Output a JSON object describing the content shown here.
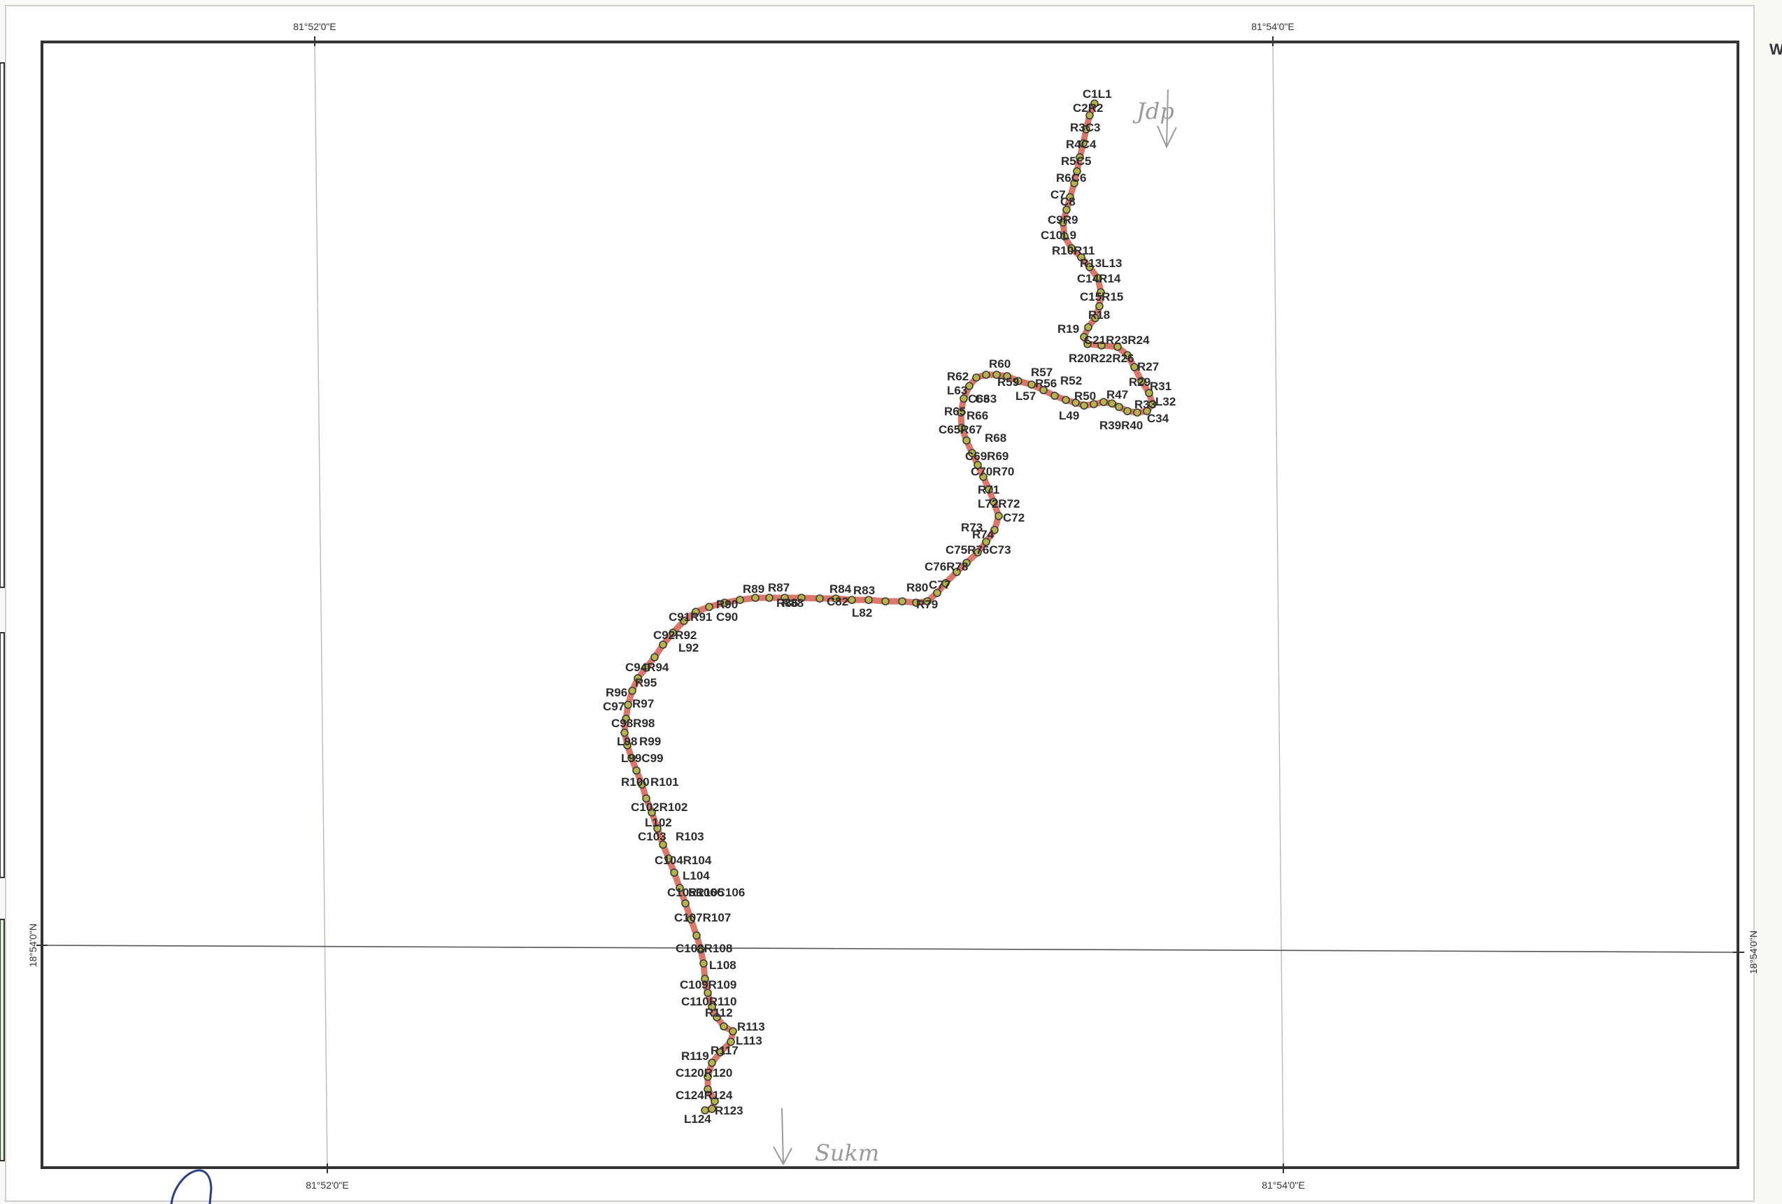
{
  "graticule": {
    "lon_left": "81°52'0\"E",
    "lon_right": "81°54'0\"E",
    "lat_mid": "18°54'0\"N"
  },
  "corner_letter": "W",
  "annotations": {
    "top": "Jdp",
    "bottom": "Sukm"
  },
  "colors": {
    "route": "#d9786b",
    "point_fill": "#b7b24a",
    "point_stroke": "#3a3a3a",
    "frame": "#333333",
    "legend_green": "#e3f1cf"
  },
  "labels": [
    "C1L1",
    "C2R2",
    "R3C3",
    "R4C4",
    "R5C5",
    "R6C6",
    "C7",
    "C8",
    "C9R9",
    "C10L9",
    "R10R11",
    "R13L13",
    "C14R14",
    "C15R15",
    "R18",
    "R19",
    "C21R23R24",
    "R20R22R26",
    "R27",
    "R29",
    "R31",
    "L32",
    "R33",
    "C34",
    "R39R40",
    "R50",
    "R47",
    "L49",
    "R52",
    "R57",
    "R56",
    "L57",
    "R59",
    "R60",
    "R62",
    "C63",
    "L63",
    "C63",
    "R65",
    "R66",
    "C65R67",
    "R68",
    "C69R69",
    "C70R70",
    "R71",
    "L72R72",
    "C72",
    "R73",
    "R74",
    "C75R76C73",
    "C76R78",
    "C77",
    "R80",
    "R79",
    "R84",
    "R83",
    "L82",
    "C82",
    "R87",
    "R89",
    "R88",
    "R86",
    "R90",
    "C90",
    "C91R91",
    "C92R92",
    "L92",
    "C94R94",
    "R95",
    "R96",
    "R97",
    "C97",
    "C98R98",
    "L98",
    "R99",
    "L99C99",
    "R100",
    "R101",
    "C102R102",
    "L102",
    "C103",
    "R103",
    "C104R104",
    "L104",
    "C105R105",
    "R106C106",
    "C107R107",
    "C108R108",
    "L108",
    "C109R109",
    "C110R110",
    "R112",
    "R113",
    "L113",
    "R117",
    "R119",
    "C120R120",
    "C124R124",
    "R123",
    "L124"
  ]
}
